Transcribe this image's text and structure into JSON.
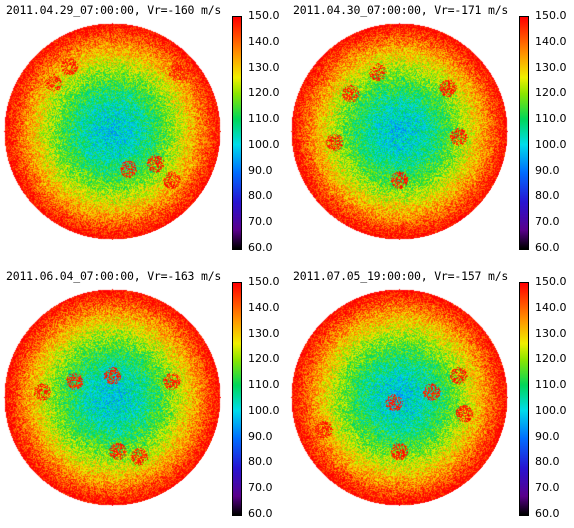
{
  "panels": [
    {
      "title": "2011.04.29_07:00:00, Vr=-160 m/s"
    },
    {
      "title": "2011.04.30_07:00:00, Vr=-171 m/s"
    },
    {
      "title": "2011.06.04_07:00:00, Vr=-163 m/s"
    },
    {
      "title": "2011.07.05_19:00:00, Vr=-157 m/s"
    }
  ],
  "colorbar": {
    "min": 60.0,
    "max": 150.0,
    "ticks": [
      "150.0",
      "140.0",
      "130.0",
      "120.0",
      "110.0",
      "100.0",
      "90.0",
      "80.0",
      "70.0",
      "60.0"
    ]
  },
  "colors": {
    "background": "#ffffff",
    "colormap": "rainbow"
  }
}
